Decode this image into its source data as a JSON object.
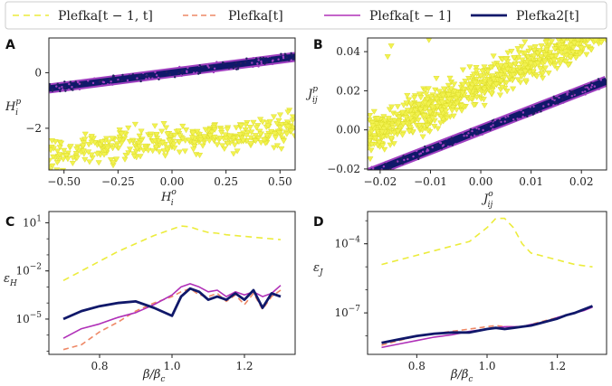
{
  "colors": {
    "tm1t": "#ecec3c",
    "t": "#ee8866",
    "tm1": "#b030b8",
    "plefka2": "#10186a",
    "scatter_a": "#f2f250",
    "diag_edge": "#a040c0"
  },
  "legend": {
    "items": [
      {
        "label": "Plefka[t − 1, t]",
        "key": "tm1t",
        "style": "dashed"
      },
      {
        "label": "Plefka[t]",
        "key": "t",
        "style": "dashed"
      },
      {
        "label": "Plefka[t − 1]",
        "key": "tm1",
        "style": "solid"
      },
      {
        "label": "Plefka2[t]",
        "key": "plefka2",
        "style": "solid-thick"
      }
    ]
  },
  "chart_data": [
    {
      "panel": "A",
      "type": "scatter",
      "xlabel": "H_i^o",
      "ylabel": "H_i^p",
      "xlim": [
        -0.57,
        0.57
      ],
      "ylim": [
        -3.5,
        1.25
      ],
      "xticks": [
        -0.5,
        -0.25,
        0.0,
        0.25,
        0.5
      ],
      "xtick_labels": [
        "−0.50",
        "−0.25",
        "0.00",
        "0.25",
        "0.50"
      ],
      "yticks": [
        -2,
        0
      ],
      "ytick_labels": [
        "−2",
        "0"
      ],
      "series": [
        {
          "name": "Plefka[t − 1, t]",
          "relation": "y ≈ 0.85x − 2.45 ± 0.35 (scattered)"
        },
        {
          "name": "Plefka[t]",
          "relation": "y ≈ x"
        },
        {
          "name": "Plefka[t − 1]",
          "relation": "y ≈ x"
        },
        {
          "name": "Plefka2[t]",
          "relation": "y ≈ x"
        }
      ]
    },
    {
      "panel": "B",
      "type": "scatter",
      "xlabel": "J_ij^o",
      "ylabel": "J_ij^p",
      "xlim": [
        -0.0225,
        0.025
      ],
      "ylim": [
        -0.0205,
        0.047
      ],
      "xticks": [
        -0.02,
        -0.01,
        0.0,
        0.01,
        0.02
      ],
      "xtick_labels": [
        "−0.02",
        "−0.01",
        "0.00",
        "0.01",
        "0.02"
      ],
      "yticks": [
        -0.02,
        0.0,
        0.02,
        0.04
      ],
      "ytick_labels": [
        "−0.02",
        "0.00",
        "0.02",
        "0.04"
      ],
      "series": [
        {
          "name": "Plefka[t − 1, t]",
          "relation": "y ≈ 1.2x + 0.023 ± 0.006 (scattered)"
        },
        {
          "name": "Plefka[t]",
          "relation": "y ≈ x"
        },
        {
          "name": "Plefka[t − 1]",
          "relation": "y ≈ x"
        },
        {
          "name": "Plefka2[t]",
          "relation": "y ≈ x"
        }
      ]
    },
    {
      "panel": "C",
      "type": "line",
      "xlabel": "β/β_c",
      "ylabel": "ε_H",
      "yscale": "log",
      "xlim": [
        0.66,
        1.34
      ],
      "ylim_log10": [
        -7.2,
        1.7
      ],
      "xticks": [
        0.8,
        1.0,
        1.2
      ],
      "xtick_labels": [
        "0.8",
        "1.0",
        "1.2"
      ],
      "yticks_log10": [
        -5,
        -2,
        1
      ],
      "x": [
        0.7,
        0.75,
        0.8,
        0.85,
        0.9,
        0.95,
        1.0,
        1.025,
        1.05,
        1.075,
        1.1,
        1.125,
        1.15,
        1.175,
        1.2,
        1.225,
        1.25,
        1.275,
        1.3
      ],
      "series": [
        {
          "name": "Plefka[t − 1, t]",
          "key": "tm1t",
          "log10_values": [
            -2.6,
            -2.0,
            -1.4,
            -0.8,
            -0.3,
            0.2,
            0.6,
            0.8,
            0.75,
            0.55,
            0.4,
            0.35,
            0.25,
            0.2,
            0.15,
            0.1,
            0.05,
            0.0,
            -0.05
          ]
        },
        {
          "name": "Plefka[t]",
          "key": "t",
          "log10_values": [
            -6.9,
            -6.6,
            -5.8,
            -5.2,
            -4.5,
            -4.0,
            -3.6,
            -3.3,
            -3.1,
            -3.5,
            -3.6,
            -3.4,
            -3.9,
            -3.5,
            -4.1,
            -3.4,
            -4.4,
            -3.6,
            -3.2
          ]
        },
        {
          "name": "Plefka[t − 1]",
          "key": "tm1",
          "log10_values": [
            -6.2,
            -5.6,
            -5.3,
            -4.9,
            -4.6,
            -4.1,
            -3.5,
            -3.0,
            -2.8,
            -3.0,
            -3.3,
            -3.2,
            -3.6,
            -3.3,
            -3.5,
            -3.3,
            -3.6,
            -3.4,
            -2.9
          ]
        },
        {
          "name": "Plefka2[t]",
          "key": "plefka2",
          "log10_values": [
            -5.0,
            -4.5,
            -4.2,
            -4.0,
            -3.9,
            -4.3,
            -4.8,
            -3.6,
            -3.1,
            -3.3,
            -3.8,
            -3.6,
            -3.8,
            -3.4,
            -3.8,
            -3.2,
            -4.3,
            -3.4,
            -3.6
          ]
        }
      ]
    },
    {
      "panel": "D",
      "type": "line",
      "xlabel": "β/β_c",
      "ylabel": "ε_J",
      "yscale": "log",
      "xlim": [
        0.66,
        1.34
      ],
      "ylim_log10": [
        -8.8,
        -2.6
      ],
      "xticks": [
        0.8,
        1.0,
        1.2
      ],
      "xtick_labels": [
        "0.8",
        "1.0",
        "1.2"
      ],
      "yticks_log10": [
        -7,
        -4
      ],
      "x": [
        0.7,
        0.75,
        0.8,
        0.85,
        0.9,
        0.95,
        1.0,
        1.025,
        1.05,
        1.075,
        1.1,
        1.125,
        1.15,
        1.175,
        1.2,
        1.225,
        1.25,
        1.275,
        1.3
      ],
      "series": [
        {
          "name": "Plefka[t − 1, t]",
          "key": "tm1t",
          "log10_values": [
            -4.9,
            -4.7,
            -4.5,
            -4.3,
            -4.1,
            -3.9,
            -3.3,
            -2.9,
            -2.9,
            -3.3,
            -4.0,
            -4.4,
            -4.5,
            -4.6,
            -4.7,
            -4.8,
            -4.9,
            -4.95,
            -5.0
          ]
        },
        {
          "name": "Plefka[t]",
          "key": "t",
          "log10_values": [
            -8.4,
            -8.2,
            -8.0,
            -7.9,
            -7.8,
            -7.7,
            -7.6,
            -7.55,
            -7.6,
            -7.6,
            -7.6,
            -7.5,
            -7.4,
            -7.3,
            -7.2,
            -7.1,
            -7.0,
            -6.85,
            -6.7
          ]
        },
        {
          "name": "Plefka[t − 1]",
          "key": "tm1",
          "log10_values": [
            -8.5,
            -8.35,
            -8.2,
            -8.05,
            -7.95,
            -7.8,
            -7.7,
            -7.65,
            -7.6,
            -7.6,
            -7.6,
            -7.5,
            -7.45,
            -7.35,
            -7.2,
            -7.1,
            -7.0,
            -6.9,
            -6.75
          ]
        },
        {
          "name": "Plefka2[t]",
          "key": "plefka2",
          "log10_values": [
            -8.3,
            -8.15,
            -8.0,
            -7.9,
            -7.85,
            -7.85,
            -7.7,
            -7.65,
            -7.7,
            -7.65,
            -7.6,
            -7.55,
            -7.45,
            -7.35,
            -7.25,
            -7.1,
            -7.0,
            -6.85,
            -6.7
          ]
        }
      ]
    }
  ]
}
